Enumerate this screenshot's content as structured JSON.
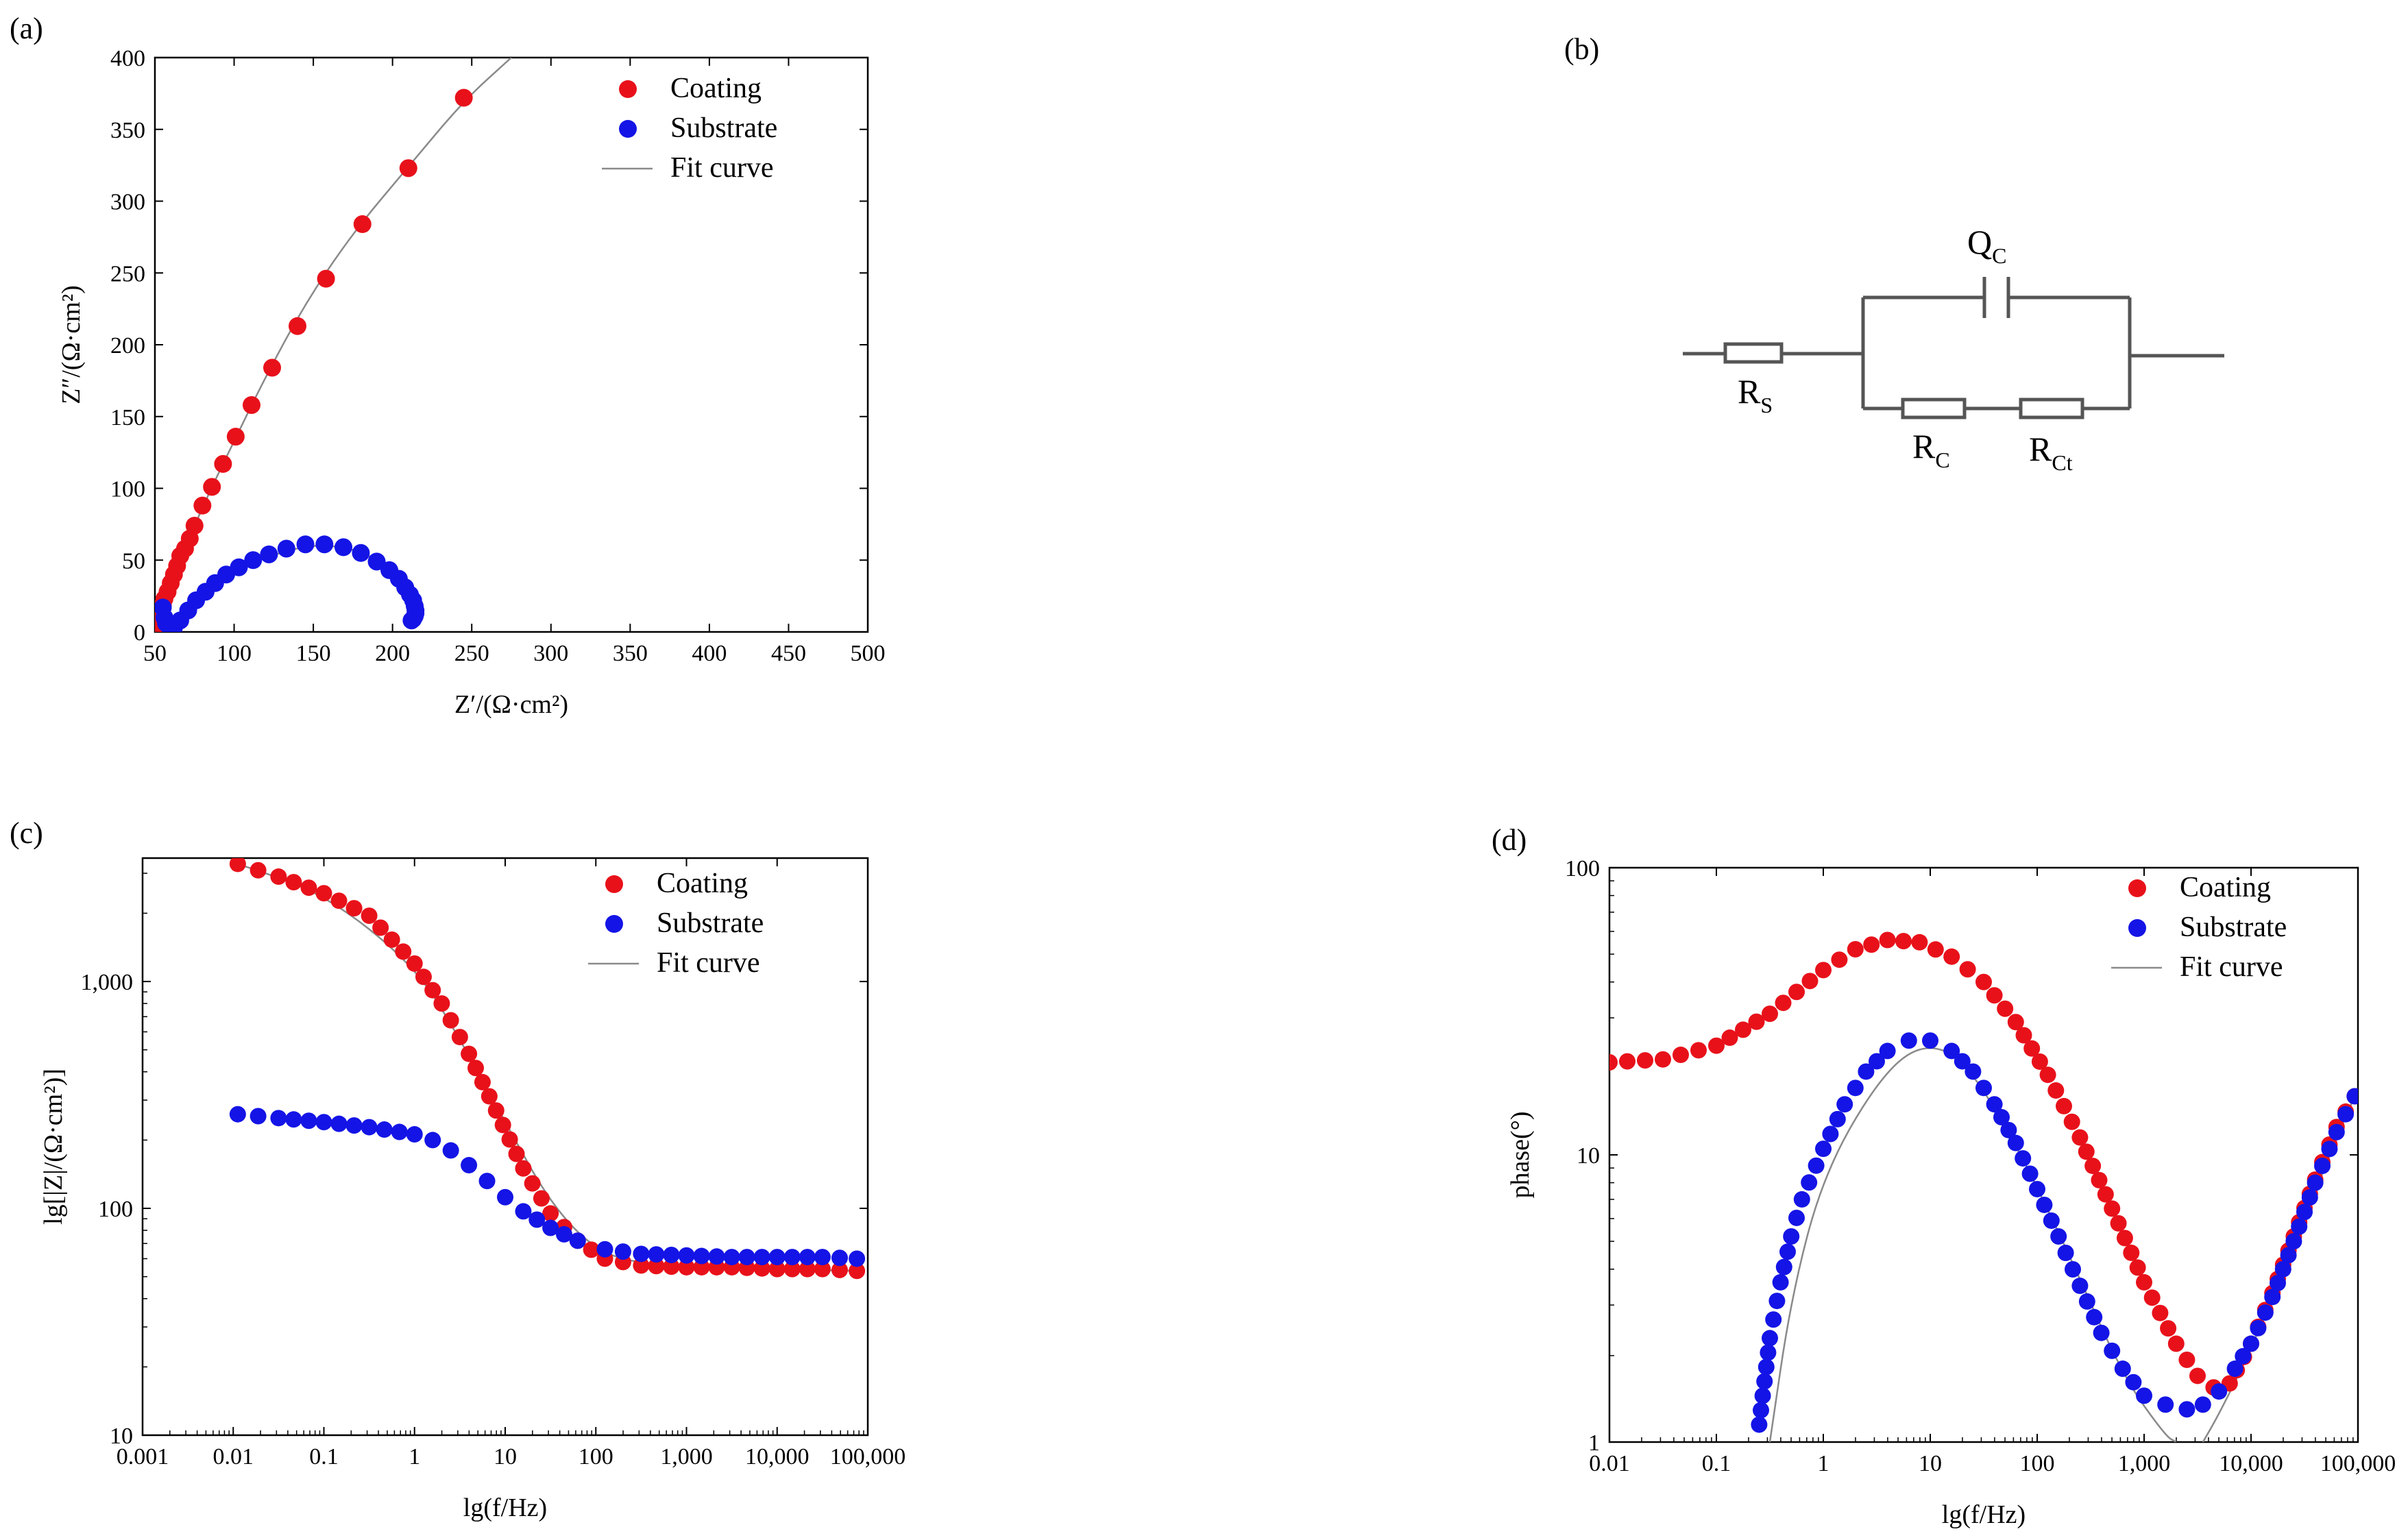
{
  "colors": {
    "coating": "#e8111a",
    "substrate": "#1414e6",
    "fit": "#8a8a8a"
  },
  "legend": {
    "coating": "Coating",
    "substrate": "Substrate",
    "fit": "Fit curve"
  },
  "panels": {
    "a": {
      "label": "(a)"
    },
    "b": {
      "label": "(b)"
    },
    "c": {
      "label": "(c)"
    },
    "d": {
      "label": "(d)"
    }
  },
  "circuit": {
    "rs": {
      "main": "R",
      "sub": "S"
    },
    "qc": {
      "main": "Q",
      "sub": "C"
    },
    "rc": {
      "main": "R",
      "sub": "C"
    },
    "rct": {
      "main": "R",
      "sub": "Ct"
    }
  },
  "chart_data": [
    {
      "id": "a",
      "type": "scatter",
      "title": "",
      "xlabel": "Z′/(Ω·cm²)",
      "ylabel": "Z″/(Ω·cm²)",
      "xlim": [
        50,
        500
      ],
      "ylim": [
        0,
        400
      ],
      "xticks": [
        50,
        100,
        150,
        200,
        250,
        300,
        350,
        400,
        450,
        500
      ],
      "yticks": [
        0,
        50,
        100,
        150,
        200,
        250,
        300,
        350,
        400
      ],
      "xtick_labels": [
        "50",
        "100",
        "150",
        "200",
        "250",
        "300",
        "350",
        "400",
        "450",
        "500"
      ],
      "ytick_labels": [
        "0",
        "50",
        "100",
        "150",
        "200",
        "250",
        "300",
        "350",
        "400"
      ],
      "series": [
        {
          "name": "Coating",
          "x": [
            50.5,
            51,
            52,
            53,
            54,
            55,
            56,
            58,
            60,
            62,
            64,
            66,
            69,
            72,
            75,
            80,
            86,
            93,
            101,
            111,
            124,
            140,
            158,
            181,
            210,
            245
          ],
          "y": [
            2,
            5,
            8,
            12,
            15,
            19,
            23,
            28,
            34,
            40,
            46,
            53,
            58,
            65,
            74,
            88,
            101,
            117,
            136,
            158,
            184,
            213,
            246,
            284,
            323,
            372
          ]
        },
        {
          "name": "Substrate",
          "x": [
            55,
            56,
            57,
            59,
            62,
            66,
            71,
            76,
            82,
            88,
            95,
            103,
            112,
            122,
            133,
            145,
            157,
            169,
            180,
            190,
            198,
            204,
            208,
            211,
            213,
            214,
            214.5,
            214.5,
            214,
            213,
            212
          ],
          "y": [
            17,
            10,
            6,
            4,
            3,
            8,
            15,
            22,
            28,
            34,
            40,
            45,
            50,
            54,
            58,
            61,
            61,
            59,
            55,
            49,
            43,
            37,
            31,
            26,
            22,
            18,
            15,
            13,
            11,
            9,
            8
          ]
        },
        {
          "name": "Fit curve",
          "x": [
            50.5,
            52,
            55,
            60,
            66,
            75,
            86,
            100,
            120,
            145,
            175,
            210,
            245,
            275
          ],
          "y": [
            2,
            8,
            19,
            34,
            53,
            74,
            101,
            133,
            178,
            229,
            278,
            324,
            370,
            400
          ]
        },
        {
          "name": "Fit curve (substrate)",
          "x": [
            55,
            60,
            70,
            85,
            100,
            120,
            145,
            165,
            185,
            200,
            210,
            214,
            214
          ],
          "y": [
            12,
            4,
            14,
            30,
            43,
            52,
            60,
            60,
            54,
            42,
            28,
            18,
            12
          ]
        }
      ]
    },
    {
      "id": "c",
      "type": "scatter",
      "title": "",
      "xscale": "log",
      "yscale": "log",
      "xlabel": "lg(f/Hz)",
      "ylabel": "lg[|Z|/(Ω·cm²)]",
      "xlim": [
        0.001,
        100000
      ],
      "ylim": [
        10,
        3500
      ],
      "xticks": [
        0.001,
        0.01,
        0.1,
        1,
        10,
        100,
        1000,
        10000,
        100000
      ],
      "yticks": [
        10,
        100,
        1000
      ],
      "xtick_labels": [
        "0.001",
        "0.01",
        "0.1",
        "1",
        "10",
        "100",
        "1,000",
        "10,000",
        "100,000"
      ],
      "ytick_labels": [
        "10",
        "100",
        "1,000"
      ],
      "series": [
        {
          "name": "Coating",
          "logx_start": -1.95,
          "logx_step": 0.1413,
          "count": 50,
          "logx": [
            -1.95,
            -1.5,
            -1.0,
            -0.5,
            0.0,
            0.3,
            0.6,
            0.9,
            1.2,
            1.5,
            1.8,
            2.1,
            2.5,
            3.0,
            3.5,
            4.0,
            4.5,
            4.88
          ],
          "y": [
            3300,
            2900,
            2450,
            1950,
            1200,
            800,
            480,
            270,
            150,
            95,
            72,
            60,
            56,
            55,
            55,
            54,
            54,
            53
          ]
        },
        {
          "name": "Substrate",
          "logx": [
            -1.95,
            -1.5,
            -1.0,
            -0.5,
            0.0,
            0.2,
            0.4,
            0.6,
            0.8,
            1.0,
            1.2,
            1.5,
            1.8,
            2.1,
            2.5,
            3.0,
            3.5,
            4.0,
            4.5,
            4.88
          ],
          "y": [
            260,
            250,
            240,
            228,
            212,
            200,
            180,
            155,
            132,
            112,
            97,
            82,
            72,
            66,
            63,
            62,
            61,
            61,
            61,
            60
          ]
        },
        {
          "name": "Fit curve",
          "logx": [
            -1.95,
            -1.0,
            0.0,
            0.5,
            1.0,
            1.5,
            2.0,
            2.5,
            3.0,
            4.88
          ],
          "y": [
            3300,
            2450,
            1180,
            560,
            240,
            105,
            65,
            57,
            55,
            53
          ]
        }
      ]
    },
    {
      "id": "d",
      "type": "scatter",
      "title": "",
      "xscale": "log",
      "yscale": "log",
      "xlabel": "lg(f/Hz)",
      "ylabel": "phase(°)",
      "xlim": [
        0.01,
        100000
      ],
      "ylim": [
        1,
        100
      ],
      "xticks": [
        0.01,
        0.1,
        1,
        10,
        100,
        1000,
        10000,
        100000
      ],
      "yticks": [
        1,
        10,
        100
      ],
      "xtick_labels": [
        "0.01",
        "0.1",
        "1",
        "10",
        "100",
        "1,000",
        "10,000",
        "100,000"
      ],
      "ytick_labels": [
        "1",
        "10",
        "100"
      ],
      "series": [
        {
          "name": "Coating",
          "logx": [
            -2.0,
            -1.5,
            -1.0,
            -0.5,
            0.0,
            0.3,
            0.6,
            0.9,
            1.2,
            1.5,
            1.8,
            2.1,
            2.4,
            2.7,
            3.0,
            3.3,
            3.5,
            3.65,
            3.8,
            4.0,
            4.2,
            4.4,
            4.6,
            4.8,
            4.97
          ],
          "y": [
            21,
            21.5,
            24,
            31,
            44,
            52,
            56,
            55,
            49,
            40,
            29,
            19,
            11.5,
            6.5,
            3.6,
            2.2,
            1.7,
            1.55,
            1.6,
            2.2,
            3.3,
            5.2,
            8.2,
            12.5,
            16
          ]
        },
        {
          "name": "Substrate",
          "logx": [
            -0.6,
            -0.5,
            -0.4,
            -0.3,
            -0.2,
            0.0,
            0.2,
            0.4,
            0.6,
            0.8,
            1.0,
            1.2,
            1.4,
            1.6,
            1.8,
            2.0,
            2.2,
            2.4,
            2.6,
            2.8,
            3.0,
            3.2,
            3.4,
            3.55,
            3.7,
            3.85,
            4.0,
            4.2,
            4.4,
            4.6,
            4.8,
            4.97
          ],
          "y": [
            1.15,
            2.3,
            3.6,
            5.2,
            7.0,
            10.5,
            15,
            19.5,
            23,
            25,
            25,
            23,
            19.5,
            15,
            11,
            7.6,
            5.2,
            3.5,
            2.4,
            1.8,
            1.45,
            1.35,
            1.3,
            1.35,
            1.5,
            1.8,
            2.2,
            3.2,
            5.0,
            8.0,
            12,
            16
          ]
        },
        {
          "name": "Fit curve",
          "logx": [
            -0.5,
            -0.3,
            0.0,
            0.5,
            0.9,
            1.3,
            1.8,
            2.3,
            2.8,
            3.2,
            3.3
          ],
          "y": [
            1.0,
            3.2,
            8.5,
            18,
            24.5,
            22,
            11,
            4.5,
            1.7,
            1.05,
            1.0
          ]
        },
        {
          "name": "Fit curve (tail)",
          "logx": [
            3.55,
            3.7,
            4.0,
            4.4,
            4.8,
            4.97
          ],
          "y": [
            1.0,
            1.25,
            2.1,
            4.8,
            11.5,
            16
          ]
        }
      ]
    }
  ]
}
